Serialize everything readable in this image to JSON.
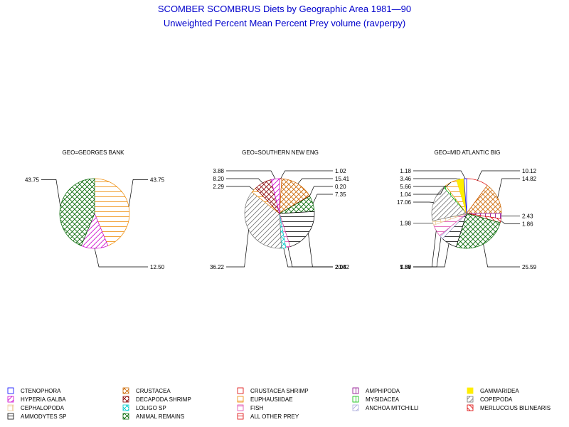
{
  "title": "SCOMBER SCOMBRUS Diets by Geographic Area 1981—90",
  "subtitle": "Unweighted Percent Mean Percent Prey  volume (ravperpy)",
  "categories": [
    {
      "name": "CTENOPHORA",
      "color": "#0000ff",
      "pattern": "none"
    },
    {
      "name": "CRUSTACEA",
      "color": "#cc6600",
      "pattern": "cross"
    },
    {
      "name": "CRUSTACEA SHRIMP",
      "color": "#dd0000",
      "pattern": "none"
    },
    {
      "name": "AMPHIPODA",
      "color": "#880088",
      "pattern": "vert"
    },
    {
      "name": "GAMMARIDEA",
      "color": "#ffee00",
      "pattern": "solid"
    },
    {
      "name": "HYPERIA GALBA",
      "color": "#cc00cc",
      "pattern": "diag"
    },
    {
      "name": "DECAPODA SHRIMP",
      "color": "#880000",
      "pattern": "cross"
    },
    {
      "name": "EUPHAUSIIDAE",
      "color": "#ee8800",
      "pattern": "horiz"
    },
    {
      "name": "MYSIDACEA",
      "color": "#00bb00",
      "pattern": "vert"
    },
    {
      "name": "COPEPODA",
      "color": "#777777",
      "pattern": "diag"
    },
    {
      "name": "CEPHALOPODA",
      "color": "#eecc99",
      "pattern": "grid"
    },
    {
      "name": "LOLIGO SP",
      "color": "#00cccc",
      "pattern": "cross"
    },
    {
      "name": "FISH",
      "color": "#dd44aa",
      "pattern": "horiz"
    },
    {
      "name": "ANCHOA MITCHILLI",
      "color": "#aaaadd",
      "pattern": "diag"
    },
    {
      "name": "MERLUCCIUS BILINEARIS",
      "color": "#dd0000",
      "pattern": "diag2"
    },
    {
      "name": "AMMODYTES SP",
      "color": "#000000",
      "pattern": "horiz"
    },
    {
      "name": "ANIMAL REMAINS",
      "color": "#006600",
      "pattern": "cross"
    },
    {
      "name": "ALL OTHER PREY",
      "color": "#dd0000",
      "pattern": "horiz"
    }
  ],
  "chart_data": [
    {
      "type": "pie",
      "title": "GEO=GEORGES BANK",
      "slices": [
        {
          "category": "EUPHAUSIIDAE",
          "value": 43.75,
          "label": "43.75"
        },
        {
          "category": "HYPERIA GALBA",
          "value": 12.5,
          "label": "12.50"
        },
        {
          "category": "ANIMAL REMAINS",
          "value": 43.75,
          "label": "43.75"
        }
      ]
    },
    {
      "type": "pie",
      "title": "GEO=SOUTHERN NEW ENG",
      "slices": [
        {
          "category": "CRUSTACEA SHRIMP",
          "value": 1.02,
          "label": "1.02"
        },
        {
          "category": "CRUSTACEA",
          "value": 15.41,
          "label": "15.41"
        },
        {
          "category": "ALL OTHER PREY",
          "value": 0.2,
          "label": "0.20"
        },
        {
          "category": "ANIMAL REMAINS",
          "value": 7.35,
          "label": "7.35"
        },
        {
          "category": "AMMODYTES SP",
          "value": 20.82,
          "label": "20.82"
        },
        {
          "category": "FISH",
          "value": 2.04,
          "label": "2.04"
        },
        {
          "category": "LOLIGO SP",
          "value": 2.04,
          "label": "2.04"
        },
        {
          "category": "COPEPODA",
          "value": 36.22,
          "label": "36.22"
        },
        {
          "category": "EUPHAUSIIDAE",
          "value": 2.29,
          "label": "2.29"
        },
        {
          "category": "DECAPODA SHRIMP",
          "value": 8.2,
          "label": "8.20"
        },
        {
          "category": "HYPERIA GALBA",
          "value": 3.88,
          "label": "3.88"
        }
      ]
    },
    {
      "type": "pie",
      "title": "GEO=MID ATLANTIC BIG",
      "slices": [
        {
          "category": "CRUSTACEA SHRIMP",
          "value": 10.12,
          "label": "10.12"
        },
        {
          "category": "CRUSTACEA",
          "value": 14.82,
          "label": "14.82"
        },
        {
          "category": "AMPHIPODA",
          "value": 2.43,
          "label": "2.43"
        },
        {
          "category": "MERLUCCIUS BILINEARIS",
          "value": 1.86,
          "label": "1.86"
        },
        {
          "category": "ANIMAL REMAINS",
          "value": 25.59,
          "label": "25.59"
        },
        {
          "category": "AMMODYTES SP",
          "value": 7.37,
          "label": "7.37"
        },
        {
          "category": "ANCHOA MITCHILLI",
          "value": 1.89,
          "label": "1.89"
        },
        {
          "category": "FISH",
          "value": 5.56,
          "label": "5.56"
        },
        {
          "category": "CEPHALOPODA",
          "value": 1.98,
          "label": "1.98"
        },
        {
          "category": "COPEPODA",
          "value": 17.06,
          "label": "17.06"
        },
        {
          "category": "MYSIDACEA",
          "value": 1.04,
          "label": "1.04"
        },
        {
          "category": "EUPHAUSIIDAE",
          "value": 5.66,
          "label": "5.66"
        },
        {
          "category": "GAMMARIDEA",
          "value": 3.46,
          "label": "3.46"
        },
        {
          "category": "CTENOPHORA",
          "value": 1.18,
          "label": "1.18"
        }
      ]
    }
  ]
}
